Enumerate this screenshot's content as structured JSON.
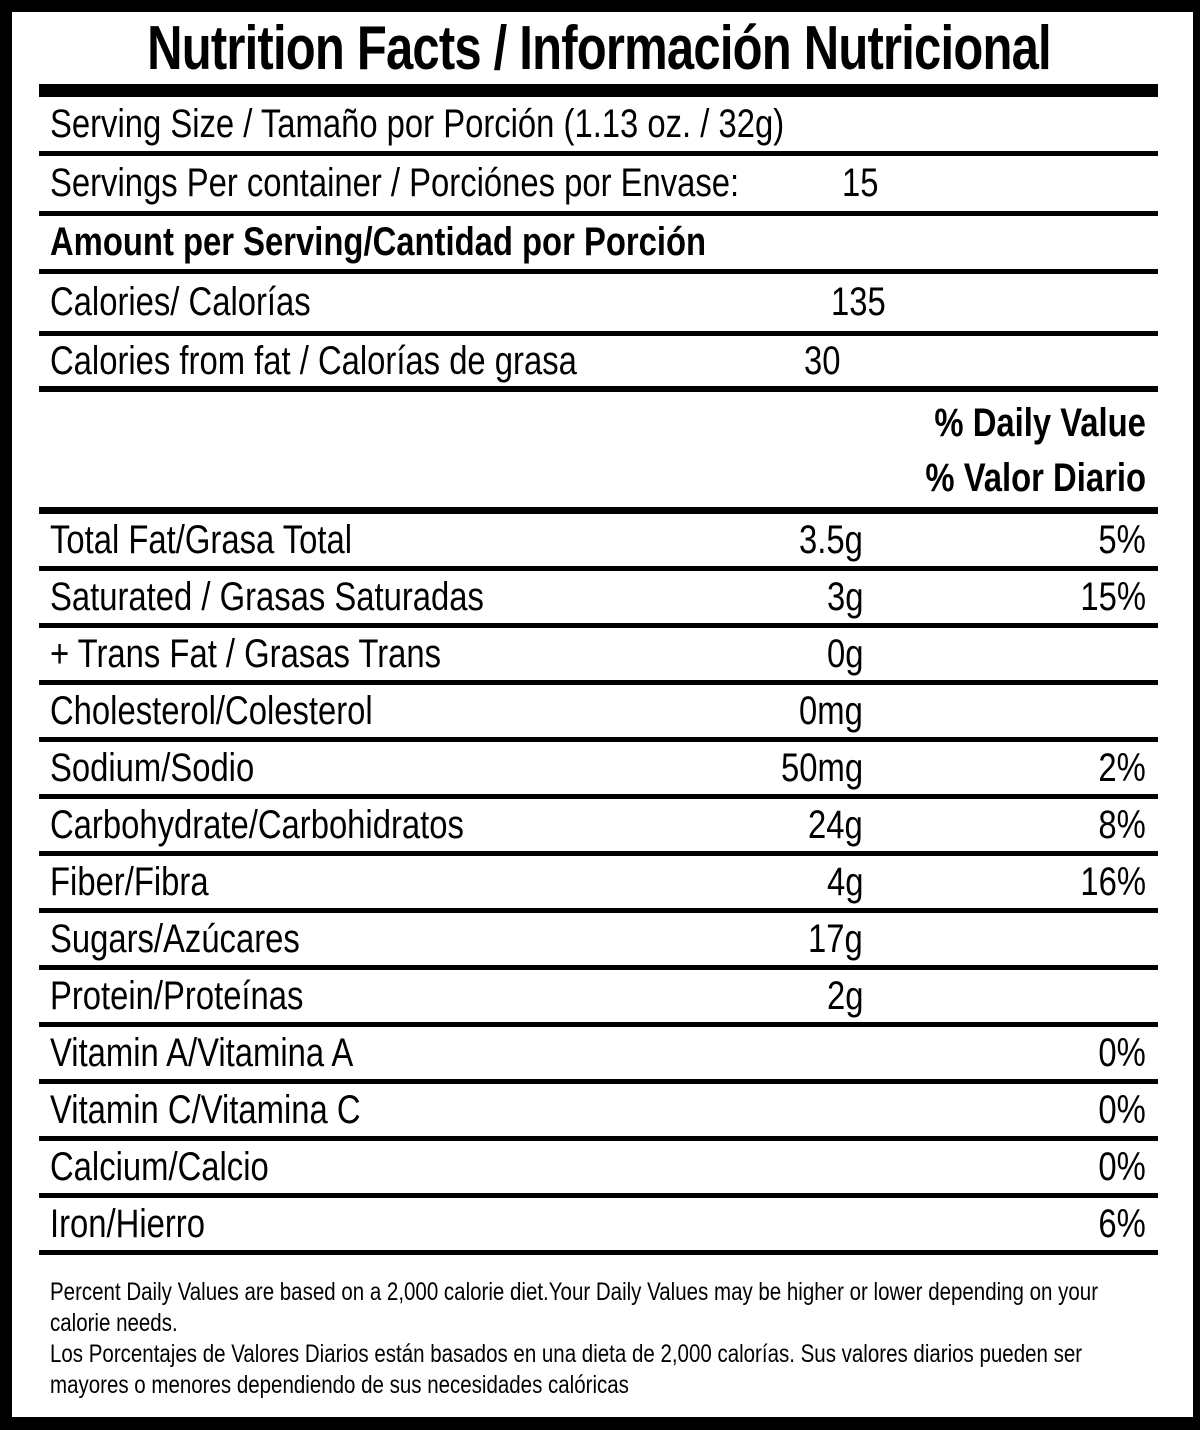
{
  "label": {
    "title": "Nutrition Facts / Información Nutricional",
    "serving_size": "Serving Size / Tamaño por Porción (1.13 oz. / 32g)",
    "servings_per_container": {
      "label": "Servings Per container / Porciónes por Envase:",
      "value": "15"
    },
    "amount_per_serving_heading": "Amount per Serving/Cantidad por Porción",
    "calories": {
      "label": "Calories/ Calorías",
      "value": "135"
    },
    "calories_from_fat": {
      "label": "Calories from fat / Calorías de grasa",
      "value": "30"
    },
    "daily_value_header": {
      "en": "% Daily Value",
      "es": "% Valor Diario"
    },
    "nutrients": [
      {
        "label": "Total Fat/Grasa Total",
        "amount": "3.5g",
        "daily_value": "5%"
      },
      {
        "label": "Saturated / Grasas Saturadas",
        "amount": "3g",
        "daily_value": "15%"
      },
      {
        "label": "+ Trans Fat / Grasas Trans",
        "amount": "0g",
        "daily_value": ""
      },
      {
        "label": "Cholesterol/Colesterol",
        "amount": "0mg",
        "daily_value": ""
      },
      {
        "label": "Sodium/Sodio",
        "amount": "50mg",
        "daily_value": "2%"
      },
      {
        "label": "Carbohydrate/Carbohidratos",
        "amount": "24g",
        "daily_value": "8%"
      },
      {
        "label": "Fiber/Fibra",
        "amount": "4g",
        "daily_value": "16%"
      },
      {
        "label": "Sugars/Azúcares",
        "amount": "17g",
        "daily_value": ""
      },
      {
        "label": "Protein/Proteínas",
        "amount": "2g",
        "daily_value": ""
      },
      {
        "label": "Vitamin A/Vitamina A",
        "amount": "",
        "daily_value": "0%"
      },
      {
        "label": "Vitamin C/Vitamina C",
        "amount": "",
        "daily_value": "0%"
      },
      {
        "label": "Calcium/Calcio",
        "amount": "",
        "daily_value": "0%"
      },
      {
        "label": "Iron/Hierro",
        "amount": "",
        "daily_value": "6%"
      }
    ],
    "footnote_lines": [
      "Percent Daily Values are based on a 2,000 calorie diet.Your Daily Values may be higher or lower depending on your",
      "calorie needs.",
      "Los Porcentajes de Valores Diarios están basados en una dieta de 2,000 calorías. Sus valores diarios pueden ser",
      "mayores o menores dependiendo de sus necesidades calóricas"
    ],
    "colors": {
      "text": "#000000",
      "background": "#ffffff"
    }
  }
}
